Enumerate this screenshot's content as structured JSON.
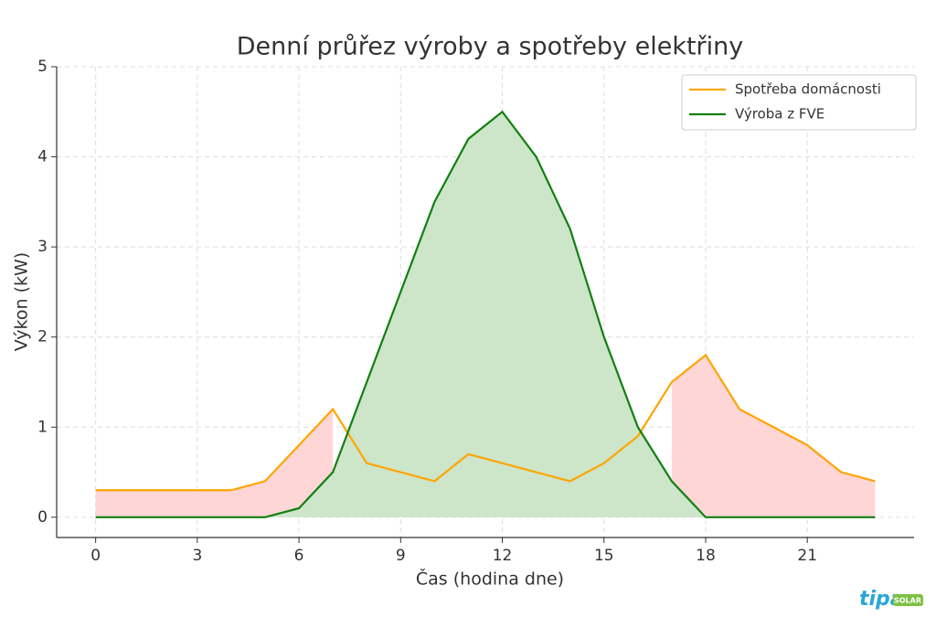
{
  "chart_data": {
    "type": "line",
    "title": "Denní průřez výroby a spotřeby elektřiny",
    "x_label": "Čas (hodina dne)",
    "y_label": "Výkon (kW)",
    "x": [
      0,
      1,
      2,
      3,
      4,
      5,
      6,
      7,
      8,
      9,
      10,
      11,
      12,
      13,
      14,
      15,
      16,
      17,
      18,
      19,
      20,
      21,
      22,
      23
    ],
    "series": [
      {
        "name": "Spotřeba domácnosti",
        "color": "#ffa500",
        "values": [
          0.3,
          0.3,
          0.3,
          0.3,
          0.3,
          0.4,
          0.8,
          1.2,
          0.6,
          0.5,
          0.4,
          0.7,
          0.6,
          0.5,
          0.4,
          0.6,
          0.9,
          1.5,
          1.8,
          1.2,
          1.0,
          0.8,
          0.5,
          0.4
        ]
      },
      {
        "name": "Výroba z FVE",
        "color": "#118011",
        "values": [
          0,
          0,
          0,
          0,
          0,
          0,
          0.1,
          0.5,
          1.5,
          2.5,
          3.5,
          4.2,
          4.5,
          4.0,
          3.2,
          2.0,
          1.0,
          0.4,
          0,
          0,
          0,
          0,
          0,
          0
        ]
      }
    ],
    "surplus_fill_color": "#cde5c9",
    "deficit_fill_color": "#ffd6d6",
    "xlim": [
      -1.15,
      24.15
    ],
    "xticks": [
      0,
      3,
      6,
      9,
      12,
      15,
      18,
      21
    ],
    "ylim": [
      -0.225,
      5
    ],
    "yticks": [
      0,
      1,
      2,
      3,
      4,
      5
    ],
    "grid": true,
    "legend": "upper right",
    "logo": {
      "brand": "tipa",
      "tag": "SOLAR"
    }
  }
}
